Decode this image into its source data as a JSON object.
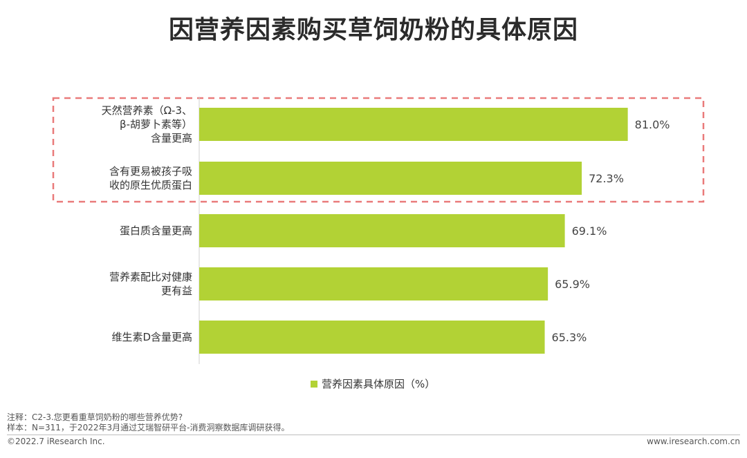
{
  "title": "因营养因素购买草饲奶粉的具体原因",
  "colors": {
    "bar": "#b2d235",
    "highlight_box": "#e97a7a",
    "axis": "#cfcfcf"
  },
  "chart_data": {
    "type": "bar",
    "orientation": "horizontal",
    "categories": [
      [
        "天然营养素（Ω-3、",
        "β-胡萝卜素等）",
        "含量更高"
      ],
      [
        "含有更易被孩子吸",
        "收的原生优质蛋白"
      ],
      [
        "蛋白质含量更高"
      ],
      [
        "营养素配比对健康",
        "更有益"
      ],
      [
        "维生素D含量更高"
      ]
    ],
    "values": [
      81.0,
      72.3,
      69.1,
      65.9,
      65.3
    ],
    "value_labels": [
      "81.0%",
      "72.3%",
      "69.1%",
      "65.9%",
      "65.3%"
    ],
    "xlim": [
      0,
      100
    ],
    "grid": false,
    "legend_position": "bottom",
    "series": [
      {
        "name": "营养因素具体原因（%）",
        "values": [
          81.0,
          72.3,
          69.1,
          65.9,
          65.3
        ]
      }
    ],
    "highlight_categories": [
      0,
      1
    ]
  },
  "legend": {
    "label": "营养因素具体原因（%）"
  },
  "notes": {
    "line1": "注释：C2-3.您更看重草饲奶粉的哪些营养优势?",
    "line2": "样本：N=311，于2022年3月通过艾瑞智研平台-消费洞察数据库调研获得。"
  },
  "footer": {
    "copyright": "©2022.7 iResearch Inc.",
    "website": "www.iresearch.com.cn"
  }
}
